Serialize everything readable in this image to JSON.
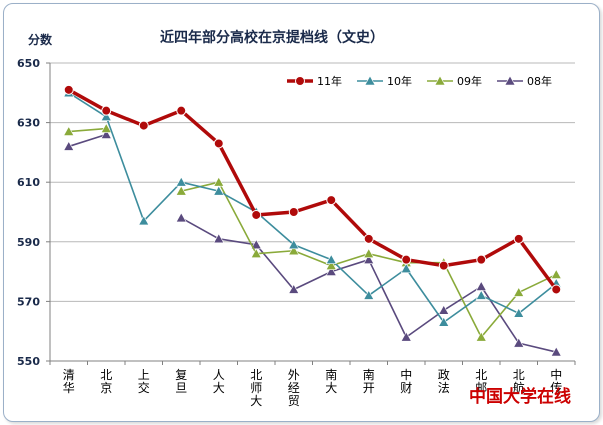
{
  "chart_data": {
    "type": "line",
    "title": "近四年部分高校在京提档线（文史）",
    "ylabel": "分数",
    "xlabel": "",
    "ylim": [
      550,
      650
    ],
    "yticks": [
      550,
      570,
      590,
      610,
      630,
      650
    ],
    "categories": [
      "清华",
      "北京",
      "上交",
      "复旦",
      "人大",
      "北师大",
      "外经贸",
      "南大",
      "南开",
      "中财",
      "政法",
      "北邮",
      "北航",
      "中传"
    ],
    "series": [
      {
        "name": "11年",
        "color": "#b00a0a",
        "marker": "circle",
        "values": [
          641,
          634,
          629,
          634,
          623,
          599,
          600,
          604,
          591,
          584,
          582,
          584,
          591,
          574
        ]
      },
      {
        "name": "10年",
        "color": "#3d8d9d",
        "marker": "triangle",
        "values": [
          640,
          632,
          597,
          610,
          607,
          600,
          589,
          584,
          572,
          581,
          563,
          572,
          566,
          576
        ]
      },
      {
        "name": "09年",
        "color": "#8aaa3a",
        "marker": "triangle",
        "values": [
          627,
          628,
          null,
          607,
          610,
          586,
          587,
          582,
          586,
          583,
          583,
          558,
          573,
          579
        ]
      },
      {
        "name": "08年",
        "color": "#5a4a7e",
        "marker": "triangle",
        "values": [
          622,
          626,
          null,
          598,
          591,
          589,
          574,
          580,
          584,
          558,
          567,
          575,
          556,
          553
        ]
      }
    ]
  },
  "watermark": "中国大学在线"
}
